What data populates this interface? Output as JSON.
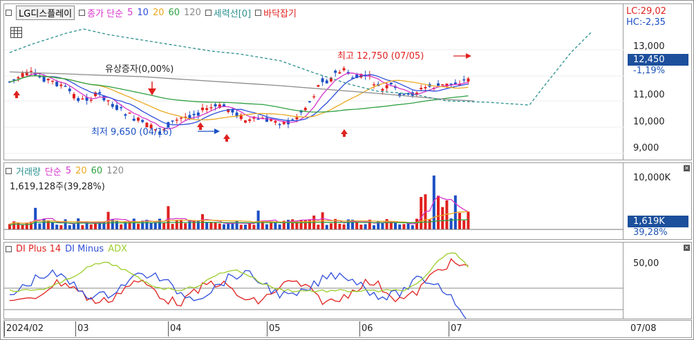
{
  "price_panel": {
    "legend": {
      "stock_name": "LG디스플레이",
      "ma_label": "종가 단순",
      "ma_periods": [
        "5",
        "10",
        "20",
        "60",
        "120"
      ],
      "trend_label": "세력선[0]",
      "bottom_label": "바닥잡기"
    },
    "lc_label": "LC:29,02",
    "hc_label": "HC:-2,35",
    "y_ticks": [
      "13,000",
      "11,000",
      "10,000",
      "9,000"
    ],
    "current_price": "12,450",
    "current_change": "-1,19%",
    "annotations": {
      "rights_issue": "유상증자(0,00%)",
      "low": "최저 9,650 (04/16)",
      "high": "최고 12,750 (07/05)"
    }
  },
  "volume_panel": {
    "legend": {
      "title": "거래량",
      "ma_label": "단순",
      "ma_periods": [
        "5",
        "20",
        "60",
        "120"
      ]
    },
    "volume_text": "1,619,128주(39,28%)",
    "y_tick": "10,000K",
    "current_volume": "1,619K",
    "current_ratio": "39,28%"
  },
  "dmi_panel": {
    "legend": {
      "plus": "DI Plus 14",
      "minus": "DI Minus",
      "adx": "ADX"
    },
    "y_tick": "50,00"
  },
  "x_axis": {
    "labels": [
      "2024/02",
      "03",
      "04",
      "05",
      "06",
      "07"
    ],
    "current_date": "07/08"
  },
  "colors": {
    "up": "#e0211e",
    "down": "#1b4fc4",
    "ma5": "#d633c9",
    "ma10": "#2f4fdb",
    "ma20": "#eaa81f",
    "ma60": "#2ea040",
    "ma120": "#8a8a8a",
    "trend": "#2a8f8f",
    "adx": "#9ccd2b"
  }
}
